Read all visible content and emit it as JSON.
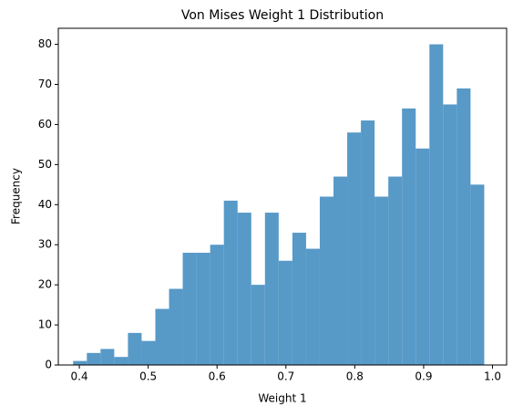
{
  "chart_data": {
    "type": "histogram",
    "title": "Von Mises Weight 1 Distribution",
    "x_label": "Weight 1",
    "y_label": "Frequency",
    "bins": [
      0.391,
      0.4109,
      0.4308,
      0.4507,
      0.4706,
      0.4905,
      0.5104,
      0.5303,
      0.5502,
      0.5701,
      0.59,
      0.6099,
      0.6298,
      0.6497,
      0.6696,
      0.6895,
      0.7094,
      0.7293,
      0.7492,
      0.7691,
      0.789,
      0.8089,
      0.8288,
      0.8487,
      0.8686,
      0.8885,
      0.9084,
      0.9283,
      0.9482,
      0.9681,
      0.988
    ],
    "counts": [
      1,
      3,
      4,
      2,
      8,
      6,
      14,
      19,
      28,
      28,
      30,
      41,
      38,
      20,
      38,
      26,
      33,
      29,
      42,
      47,
      58,
      61,
      42,
      47,
      64,
      54,
      80,
      65,
      69,
      45
    ],
    "color": "#5799c7",
    "xlim": [
      0.3695,
      1.0205
    ],
    "xticks": [
      0.4,
      0.5,
      0.6,
      0.7,
      0.8,
      0.9,
      {
        "value": 1.0,
        "label": "1.0"
      }
    ],
    "ylim": [
      0,
      84
    ],
    "yticks": [
      0,
      10,
      20,
      30,
      40,
      50,
      60,
      70,
      80
    ]
  }
}
